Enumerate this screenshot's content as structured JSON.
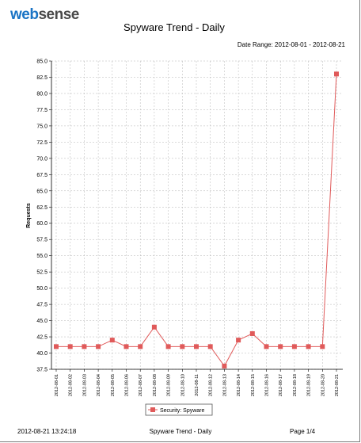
{
  "logo": {
    "part1": "web",
    "part2": "sense"
  },
  "report": {
    "title": "Spyware Trend - Daily",
    "date_range": "Date Range: 2012-08-01 - 2012-08-21"
  },
  "footer": {
    "timestamp": "2012-08-21 13:24:18",
    "report_name": "Spyware Trend - Daily",
    "page": "Page 1/4"
  },
  "colors": {
    "series": "#e05a5a",
    "grid": "#b5b5b5",
    "axis": "#000000"
  },
  "chart_data": {
    "type": "line",
    "ylabel": "Requests",
    "xlabel": "",
    "ylim": [
      37.5,
      85.0
    ],
    "y_ticks": [
      "85.0",
      "82.5",
      "80.0",
      "77.5",
      "75.0",
      "72.5",
      "70.0",
      "67.5",
      "65.0",
      "62.5",
      "60.0",
      "57.5",
      "55.0",
      "52.5",
      "50.0",
      "47.5",
      "45.0",
      "42.5",
      "40.0",
      "37.5"
    ],
    "categories": [
      "2012-08-01",
      "2012-08-02",
      "2012-08-03",
      "2012-08-04",
      "2012-08-05",
      "2012-08-06",
      "2012-08-07",
      "2012-08-08",
      "2012-08-09",
      "2012-08-10",
      "2012-08-11",
      "2012-08-12",
      "2012-08-13",
      "2012-08-14",
      "2012-08-15",
      "2012-08-16",
      "2012-08-17",
      "2012-08-18",
      "2012-08-19",
      "2012-08-20",
      "2012-08-21"
    ],
    "series": [
      {
        "name": "Security: Spyware",
        "values": [
          41,
          41,
          41,
          41,
          42,
          41,
          41,
          44,
          41,
          41,
          41,
          41,
          38,
          42,
          43,
          41,
          41,
          41,
          41,
          41,
          83
        ]
      }
    ],
    "grid": true,
    "legend_position": "bottom-center"
  }
}
